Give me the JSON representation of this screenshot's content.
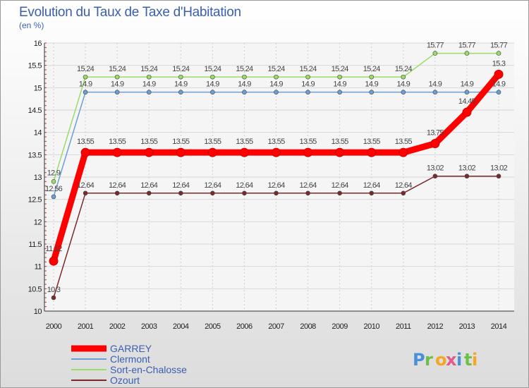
{
  "chart_data": {
    "type": "line",
    "title": "Evolution du Taux de Taxe d'Habitation",
    "ylabel": "(en %)",
    "xlabel": "",
    "ylim": [
      10,
      16
    ],
    "yticks": [
      "10",
      "10.5",
      "11",
      "11.5",
      "12",
      "12.5",
      "13",
      "13.5",
      "14",
      "14.5",
      "15",
      "15.5",
      "16"
    ],
    "categories": [
      "2000",
      "2001",
      "2002",
      "2003",
      "2004",
      "2005",
      "2006",
      "2007",
      "2008",
      "2009",
      "2010",
      "2011",
      "2012",
      "2013",
      "2014"
    ],
    "series": [
      {
        "name": "GARREY",
        "color": "#ff0000",
        "values": [
          11.12,
          13.55,
          13.55,
          13.55,
          13.55,
          13.55,
          13.55,
          13.55,
          13.55,
          13.55,
          13.55,
          13.55,
          13.75,
          14.45,
          15.3
        ],
        "labels": [
          "11.12",
          "13.55",
          "13.55",
          "13.55",
          "13.55",
          "13.55",
          "13.55",
          "13.55",
          "13.55",
          "13.55",
          "13.55",
          "13.55",
          "13.75",
          "14.45",
          "15.3"
        ]
      },
      {
        "name": "Clermont",
        "color": "#6b9fd4",
        "values": [
          12.56,
          14.9,
          14.9,
          14.9,
          14.9,
          14.9,
          14.9,
          14.9,
          14.9,
          14.9,
          14.9,
          14.9,
          14.9,
          14.9,
          14.9
        ],
        "labels": [
          "12.56",
          "14.9",
          "14.9",
          "14.9",
          "14.9",
          "14.9",
          "14.9",
          "14.9",
          "14.9",
          "14.9",
          "14.9",
          "14.9",
          "14.9",
          "14.9",
          "14.9"
        ]
      },
      {
        "name": "Sort-en-Chalosse",
        "color": "#99dd66",
        "values": [
          12.9,
          15.24,
          15.24,
          15.24,
          15.24,
          15.24,
          15.24,
          15.24,
          15.24,
          15.24,
          15.24,
          15.24,
          15.77,
          15.77,
          15.77
        ],
        "labels": [
          "12.9",
          "15.24",
          "15.24",
          "15.24",
          "15.24",
          "15.24",
          "15.24",
          "15.24",
          "15.24",
          "15.24",
          "15.24",
          "15.24",
          "15.77",
          "15.77",
          "15.77"
        ]
      },
      {
        "name": "Ozourt",
        "color": "#7a2a2a",
        "values": [
          10.3,
          12.64,
          12.64,
          12.64,
          12.64,
          12.64,
          12.64,
          12.64,
          12.64,
          12.64,
          12.64,
          12.64,
          13.02,
          13.02,
          13.02
        ],
        "labels": [
          "10.3",
          "12.64",
          "12.64",
          "12.64",
          "12.64",
          "12.64",
          "12.64",
          "12.64",
          "12.64",
          "12.64",
          "12.64",
          "12.64",
          "13.02",
          "13.02",
          "13.02"
        ]
      }
    ]
  },
  "logo": {
    "text": "Proxiti"
  }
}
